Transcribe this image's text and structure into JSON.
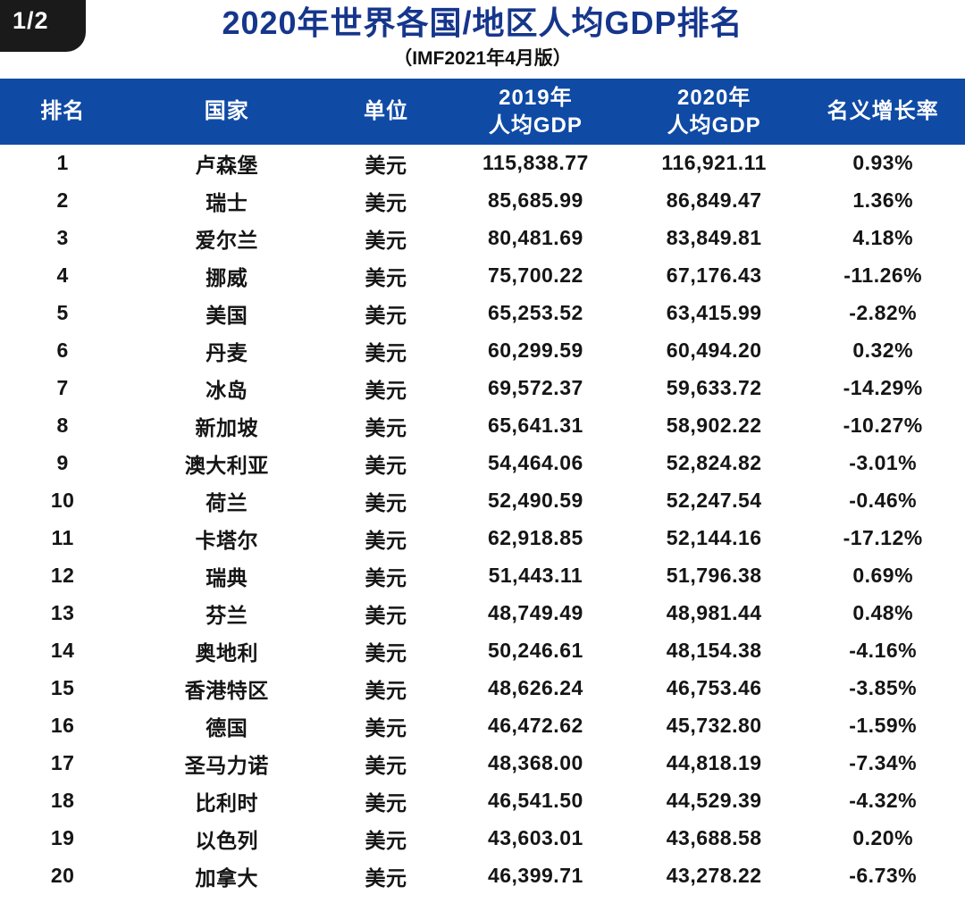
{
  "page": {
    "indicator": "1/2"
  },
  "header": {
    "title": "2020年世界各国/地区人均GDP排名",
    "subtitle": "（IMF2021年4月版）"
  },
  "colors": {
    "header_bg": "#0f4aa5",
    "title_color": "#16368c",
    "body_text": "#151515",
    "corner_bg": "#1a1a1a"
  },
  "table": {
    "columns": [
      {
        "key": "rank",
        "lines": [
          "排名"
        ]
      },
      {
        "key": "country",
        "lines": [
          "国家"
        ]
      },
      {
        "key": "unit",
        "lines": [
          "单位"
        ]
      },
      {
        "key": "gdp2019",
        "lines": [
          "2019年",
          "人均GDP"
        ]
      },
      {
        "key": "gdp2020",
        "lines": [
          "2020年",
          "人均GDP"
        ]
      },
      {
        "key": "growth",
        "lines": [
          "名义增长率"
        ]
      }
    ],
    "rows": [
      {
        "rank": "1",
        "country": "卢森堡",
        "unit": "美元",
        "gdp2019": "115,838.77",
        "gdp2020": "116,921.11",
        "growth": "0.93%"
      },
      {
        "rank": "2",
        "country": "瑞士",
        "unit": "美元",
        "gdp2019": "85,685.99",
        "gdp2020": "86,849.47",
        "growth": "1.36%"
      },
      {
        "rank": "3",
        "country": "爱尔兰",
        "unit": "美元",
        "gdp2019": "80,481.69",
        "gdp2020": "83,849.81",
        "growth": "4.18%"
      },
      {
        "rank": "4",
        "country": "挪威",
        "unit": "美元",
        "gdp2019": "75,700.22",
        "gdp2020": "67,176.43",
        "growth": "-11.26%"
      },
      {
        "rank": "5",
        "country": "美国",
        "unit": "美元",
        "gdp2019": "65,253.52",
        "gdp2020": "63,415.99",
        "growth": "-2.82%"
      },
      {
        "rank": "6",
        "country": "丹麦",
        "unit": "美元",
        "gdp2019": "60,299.59",
        "gdp2020": "60,494.20",
        "growth": "0.32%"
      },
      {
        "rank": "7",
        "country": "冰岛",
        "unit": "美元",
        "gdp2019": "69,572.37",
        "gdp2020": "59,633.72",
        "growth": "-14.29%"
      },
      {
        "rank": "8",
        "country": "新加坡",
        "unit": "美元",
        "gdp2019": "65,641.31",
        "gdp2020": "58,902.22",
        "growth": "-10.27%"
      },
      {
        "rank": "9",
        "country": "澳大利亚",
        "unit": "美元",
        "gdp2019": "54,464.06",
        "gdp2020": "52,824.82",
        "growth": "-3.01%"
      },
      {
        "rank": "10",
        "country": "荷兰",
        "unit": "美元",
        "gdp2019": "52,490.59",
        "gdp2020": "52,247.54",
        "growth": "-0.46%"
      },
      {
        "rank": "11",
        "country": "卡塔尔",
        "unit": "美元",
        "gdp2019": "62,918.85",
        "gdp2020": "52,144.16",
        "growth": "-17.12%"
      },
      {
        "rank": "12",
        "country": "瑞典",
        "unit": "美元",
        "gdp2019": "51,443.11",
        "gdp2020": "51,796.38",
        "growth": "0.69%"
      },
      {
        "rank": "13",
        "country": "芬兰",
        "unit": "美元",
        "gdp2019": "48,749.49",
        "gdp2020": "48,981.44",
        "growth": "0.48%"
      },
      {
        "rank": "14",
        "country": "奥地利",
        "unit": "美元",
        "gdp2019": "50,246.61",
        "gdp2020": "48,154.38",
        "growth": "-4.16%"
      },
      {
        "rank": "15",
        "country": "香港特区",
        "unit": "美元",
        "gdp2019": "48,626.24",
        "gdp2020": "46,753.46",
        "growth": "-3.85%"
      },
      {
        "rank": "16",
        "country": "德国",
        "unit": "美元",
        "gdp2019": "46,472.62",
        "gdp2020": "45,732.80",
        "growth": "-1.59%"
      },
      {
        "rank": "17",
        "country": "圣马力诺",
        "unit": "美元",
        "gdp2019": "48,368.00",
        "gdp2020": "44,818.19",
        "growth": "-7.34%"
      },
      {
        "rank": "18",
        "country": "比利时",
        "unit": "美元",
        "gdp2019": "46,541.50",
        "gdp2020": "44,529.39",
        "growth": "-4.32%"
      },
      {
        "rank": "19",
        "country": "以色列",
        "unit": "美元",
        "gdp2019": "43,603.01",
        "gdp2020": "43,688.58",
        "growth": "0.20%"
      },
      {
        "rank": "20",
        "country": "加拿大",
        "unit": "美元",
        "gdp2019": "46,399.71",
        "gdp2020": "43,278.22",
        "growth": "-6.73%"
      }
    ]
  }
}
